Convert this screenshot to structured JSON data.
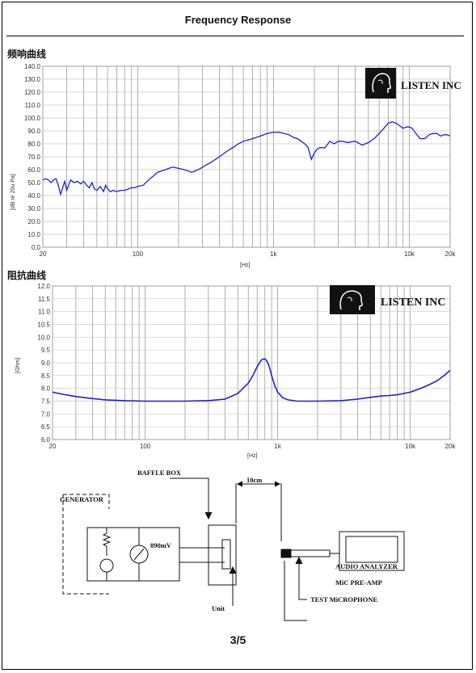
{
  "header": {
    "title": "Frequency    Response"
  },
  "frequency_response": {
    "heading": "频响曲线",
    "ylabel": "[dB re 20u Pa]",
    "xlabel": "[Hz]",
    "logo": "LISTEN INC"
  },
  "impedance": {
    "heading": "阻抗曲线",
    "ylabel": "[Ohm]",
    "xlabel": "[Hz]",
    "logo": "LISTEN INC"
  },
  "chart_data": [
    {
      "type": "line",
      "xlabel": "[Hz]",
      "ylabel": "[dB re 20u Pa]",
      "x_scale": "log",
      "xlim": [
        20,
        20000
      ],
      "ylim": [
        0,
        140
      ],
      "y_ticks": [
        "0.0",
        "10.0",
        "20.0",
        "30.0",
        "40.0",
        "50.0",
        "60.0",
        "70.0",
        "80.0",
        "90.0",
        "100.0",
        "110.0",
        "120.0",
        "130.0",
        "140.0"
      ],
      "x_ticks": [
        "20",
        "100",
        "1k",
        "10k",
        "20k"
      ],
      "grid": true,
      "series": [
        {
          "color": "#1f1fd6",
          "x": [
            20,
            21,
            22,
            23,
            24,
            25,
            26,
            27,
            28,
            29,
            30,
            32,
            34,
            36,
            38,
            40,
            42,
            44,
            46,
            48,
            50,
            53,
            56,
            58,
            60,
            63,
            66,
            70,
            75,
            80,
            85,
            90,
            95,
            100,
            110,
            120,
            130,
            140,
            150,
            160,
            170,
            180,
            200,
            220,
            250,
            280,
            300,
            350,
            400,
            450,
            500,
            550,
            600,
            650,
            700,
            800,
            900,
            1000,
            1100,
            1200,
            1300,
            1400,
            1500,
            1600,
            1700,
            1800,
            1900,
            2000,
            2100,
            2200,
            2400,
            2600,
            2800,
            3000,
            3200,
            3500,
            4000,
            4500,
            5000,
            5500,
            6000,
            6500,
            7000,
            7500,
            8000,
            8500,
            9000,
            9500,
            10000,
            10500,
            11000,
            12000,
            13000,
            14000,
            15000,
            16000,
            17000,
            18000,
            19000,
            20000
          ],
          "values": [
            52,
            53,
            52,
            50,
            52,
            53,
            48,
            41,
            46,
            51,
            44,
            52,
            50,
            51,
            49,
            51,
            48,
            46,
            50,
            45,
            44,
            47,
            43,
            48,
            45,
            43,
            44,
            43,
            44,
            44,
            45,
            46,
            46,
            47,
            48,
            52,
            55,
            58,
            59,
            60,
            61,
            62,
            61,
            60,
            58,
            60,
            62,
            66,
            70,
            74,
            77,
            80,
            82,
            83,
            84,
            86,
            88,
            89,
            89,
            88,
            87,
            85,
            84,
            82,
            80,
            77,
            68,
            73,
            76,
            77,
            77,
            82,
            80,
            82,
            82,
            81,
            82,
            79,
            81,
            84,
            88,
            92,
            96,
            97,
            96,
            94,
            92,
            93,
            93,
            92,
            89,
            84,
            84,
            87,
            88,
            88,
            86,
            87,
            87,
            86
          ]
        }
      ]
    },
    {
      "type": "line",
      "xlabel": "[Hz]",
      "ylabel": "[Ohm]",
      "x_scale": "log",
      "xlim": [
        20,
        20000
      ],
      "ylim": [
        6,
        12
      ],
      "y_ticks": [
        "6.0",
        "6.5",
        "7.0",
        "7.5",
        "8.0",
        "8.5",
        "9.0",
        "9.5",
        "10.0",
        "10.5",
        "11.0",
        "11.5",
        "12.0"
      ],
      "x_ticks": [
        "20",
        "100",
        "1k",
        "10k",
        "20k"
      ],
      "grid": true,
      "series": [
        {
          "color": "#1f1fd6",
          "x": [
            20,
            25,
            30,
            40,
            50,
            70,
            100,
            150,
            200,
            300,
            400,
            500,
            600,
            650,
            700,
            750,
            780,
            800,
            820,
            850,
            880,
            900,
            950,
            1000,
            1100,
            1200,
            1400,
            1700,
            2000,
            3000,
            4000,
            5000,
            6000,
            7000,
            8000,
            10000,
            12000,
            14000,
            16000,
            18000,
            20000
          ],
          "values": [
            7.85,
            7.75,
            7.68,
            7.6,
            7.55,
            7.52,
            7.5,
            7.5,
            7.5,
            7.52,
            7.58,
            7.8,
            8.2,
            8.5,
            8.85,
            9.1,
            9.15,
            9.15,
            9.1,
            8.95,
            8.7,
            8.5,
            8.1,
            7.85,
            7.62,
            7.55,
            7.5,
            7.5,
            7.5,
            7.52,
            7.58,
            7.65,
            7.7,
            7.72,
            7.75,
            7.85,
            8.0,
            8.15,
            8.3,
            8.5,
            8.7
          ]
        }
      ]
    }
  ],
  "diagram": {
    "baffle_box": "BAFFLE BOX",
    "generator": "GENERATOR",
    "distance": "10cm",
    "voltage": "890mV",
    "audio_analyzer": "AUDIO ANALYZER",
    "mic_preamp": "MiC PRE-AMP",
    "test_mic": "TEST MiCROPHONE",
    "unit": "Unit"
  },
  "footer": {
    "page": "3/5"
  }
}
